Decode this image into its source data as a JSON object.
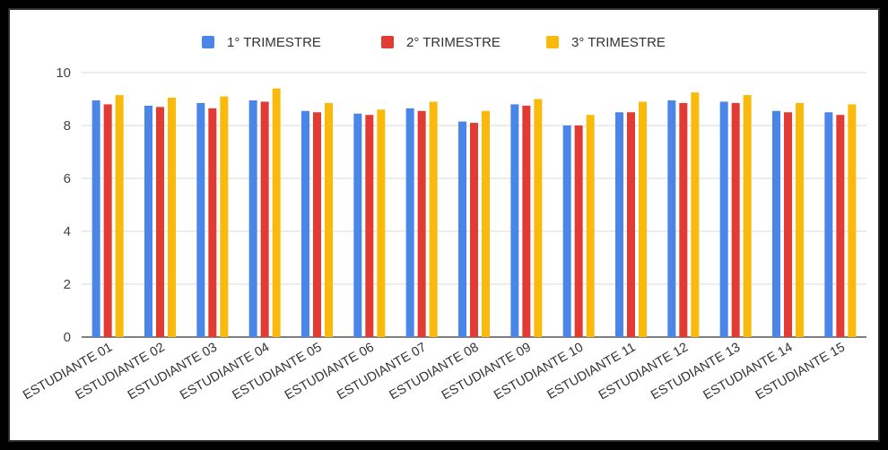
{
  "chart_data": {
    "type": "bar",
    "categories": [
      "ESTUDIANTE 01",
      "ESTUDIANTE 02",
      "ESTUDIANTE 03",
      "ESTUDIANTE 04",
      "ESTUDIANTE 05",
      "ESTUDIANTE 06",
      "ESTUDIANTE 07",
      "ESTUDIANTE 08",
      "ESTUDIANTE 09",
      "ESTUDIANTE 10",
      "ESTUDIANTE 11",
      "ESTUDIANTE 12",
      "ESTUDIANTE 13",
      "ESTUDIANTE 14",
      "ESTUDIANTE 15"
    ],
    "series": [
      {
        "name": "1° TRIMESTRE",
        "color": "#4a86e8",
        "values": [
          8.95,
          8.75,
          8.85,
          8.95,
          8.55,
          8.45,
          8.65,
          8.15,
          8.8,
          8.0,
          8.5,
          8.95,
          8.9,
          8.55,
          8.5
        ]
      },
      {
        "name": "2° TRIMESTRE",
        "color": "#e23b34",
        "values": [
          8.8,
          8.7,
          8.65,
          8.9,
          8.5,
          8.4,
          8.55,
          8.1,
          8.75,
          8.0,
          8.5,
          8.85,
          8.85,
          8.5,
          8.4
        ]
      },
      {
        "name": "3° TRIMESTRE",
        "color": "#f9ba0c",
        "values": [
          9.15,
          9.05,
          9.1,
          9.4,
          8.85,
          8.6,
          8.9,
          8.55,
          9.0,
          8.4,
          8.9,
          9.25,
          9.15,
          8.85,
          8.8
        ]
      }
    ],
    "y_ticks": [
      "0",
      "2",
      "4",
      "6",
      "8",
      "10"
    ],
    "ylim": [
      0,
      10
    ],
    "grid": true,
    "legend": "top"
  }
}
